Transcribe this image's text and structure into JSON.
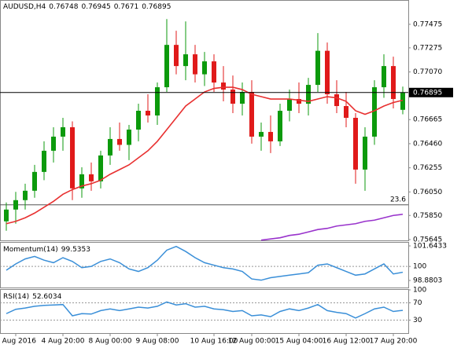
{
  "chart_data": [
    {
      "type": "candlestick",
      "title": "AUDUSD,H4",
      "color_up": "#0c9a0c",
      "color_down": "#e01a1a",
      "categories": [
        null,
        "3 Aug 2016",
        null,
        null,
        null,
        null,
        "4 Aug 20:00",
        null,
        null,
        null,
        null,
        "8 Aug 00:00",
        null,
        null,
        null,
        null,
        "9 Aug 08:00",
        null,
        null,
        null,
        null,
        null,
        "10 Aug 16:00",
        null,
        null,
        null,
        "12 Aug 00:00",
        null,
        null,
        null,
        null,
        "15 Aug 04:00",
        null,
        null,
        null,
        null,
        "16 Aug 12:00",
        null,
        null,
        null,
        null,
        "17 Aug 20:00",
        null
      ],
      "ohlc": [
        [
          0.758,
          0.7596,
          0.7572,
          0.759
        ],
        [
          0.759,
          0.7605,
          0.7578,
          0.7598
        ],
        [
          0.7598,
          0.7612,
          0.759,
          0.7606
        ],
        [
          0.7606,
          0.7628,
          0.76,
          0.7622
        ],
        [
          0.7622,
          0.7648,
          0.7615,
          0.764
        ],
        [
          0.764,
          0.766,
          0.763,
          0.7652
        ],
        [
          0.7652,
          0.7668,
          0.764,
          0.766
        ],
        [
          0.766,
          0.7665,
          0.7598,
          0.7608
        ],
        [
          0.7608,
          0.7626,
          0.76,
          0.762
        ],
        [
          0.762,
          0.763,
          0.7606,
          0.7614
        ],
        [
          0.7614,
          0.764,
          0.7608,
          0.7636
        ],
        [
          0.7636,
          0.766,
          0.7628,
          0.765
        ],
        [
          0.765,
          0.7664,
          0.764,
          0.7645
        ],
        [
          0.7645,
          0.7662,
          0.7632,
          0.7658
        ],
        [
          0.7658,
          0.768,
          0.7648,
          0.7674
        ],
        [
          0.7674,
          0.7688,
          0.7664,
          0.767
        ],
        [
          0.767,
          0.7698,
          0.7662,
          0.7694
        ],
        [
          0.7694,
          0.7752,
          0.769,
          0.773
        ],
        [
          0.773,
          0.7742,
          0.7705,
          0.7712
        ],
        [
          0.7712,
          0.775,
          0.77,
          0.7722
        ],
        [
          0.7722,
          0.773,
          0.7698,
          0.7705
        ],
        [
          0.7705,
          0.7724,
          0.7695,
          0.7716
        ],
        [
          0.7716,
          0.7722,
          0.769,
          0.7698
        ],
        [
          0.7698,
          0.7712,
          0.7682,
          0.7692
        ],
        [
          0.7692,
          0.7704,
          0.7672,
          0.768
        ],
        [
          0.768,
          0.7698,
          0.767,
          0.769
        ],
        [
          0.769,
          0.77,
          0.7646,
          0.7652
        ],
        [
          0.7652,
          0.7664,
          0.764,
          0.7656
        ],
        [
          0.7656,
          0.767,
          0.7638,
          0.7648
        ],
        [
          0.7648,
          0.768,
          0.7644,
          0.7674
        ],
        [
          0.7674,
          0.7692,
          0.7665,
          0.7684
        ],
        [
          0.7684,
          0.7698,
          0.7672,
          0.768
        ],
        [
          0.768,
          0.7702,
          0.767,
          0.7696
        ],
        [
          0.7696,
          0.774,
          0.769,
          0.7725
        ],
        [
          0.7725,
          0.7732,
          0.768,
          0.7688
        ],
        [
          0.7688,
          0.77,
          0.7672,
          0.7678
        ],
        [
          0.7678,
          0.769,
          0.766,
          0.7668
        ],
        [
          0.7668,
          0.7672,
          0.7612,
          0.7624
        ],
        [
          0.7624,
          0.766,
          0.7606,
          0.7652
        ],
        [
          0.7652,
          0.77,
          0.7645,
          0.7694
        ],
        [
          0.7694,
          0.7722,
          0.7685,
          0.7712
        ],
        [
          0.7712,
          0.772,
          0.7676,
          0.7684
        ],
        [
          0.76748,
          0.76945,
          0.7671,
          0.76895
        ]
      ],
      "series": [
        {
          "color": "#e83030",
          "values": [
            0.7578,
            0.758,
            0.7583,
            0.7587,
            0.7592,
            0.7597,
            0.7603,
            0.7607,
            0.761,
            0.7612,
            0.7615,
            0.762,
            0.7624,
            0.7628,
            0.7634,
            0.764,
            0.7648,
            0.7658,
            0.7668,
            0.7678,
            0.7684,
            0.769,
            0.7693,
            0.7694,
            0.7694,
            0.7692,
            0.7688,
            0.7686,
            0.7684,
            0.7684,
            0.7684,
            0.7683,
            0.7682,
            0.7684,
            0.7686,
            0.7685,
            0.7682,
            0.7674,
            0.7671,
            0.7674,
            0.7678,
            0.7681,
            0.7683
          ]
        },
        {
          "color": "#9933cc",
          "values": [
            null,
            null,
            null,
            null,
            null,
            null,
            null,
            null,
            null,
            null,
            null,
            null,
            null,
            null,
            null,
            null,
            null,
            null,
            null,
            null,
            null,
            null,
            null,
            null,
            null,
            null,
            null,
            0.7564,
            0.7565,
            0.7566,
            0.7568,
            0.7569,
            0.7571,
            0.7573,
            0.7574,
            0.7576,
            0.7577,
            0.7578,
            0.758,
            0.7581,
            0.7583,
            0.7585,
            0.7586
          ]
        }
      ],
      "current_price": 0.76895,
      "fib_level": {
        "value": 0.7594,
        "label": "23.6"
      },
      "ylim": [
        0.75638,
        0.77675
      ],
      "yticks": [
        0.77475,
        0.77275,
        {
          "value": 0.7707,
          "label": "0.77070"
        },
        0.76665,
        {
          "value": 0.7646,
          "label": "0.76460"
        },
        0.76255,
        {
          "value": 0.7605,
          "label": "0.76050"
        },
        {
          "value": 0.7585,
          "label": "0.75850"
        },
        0.75645
      ]
    },
    {
      "type": "line",
      "title": "Momentum(14)",
      "color": "#3a8fd8",
      "values": [
        99.7,
        100.2,
        100.6,
        100.8,
        100.5,
        100.3,
        100.7,
        100.4,
        99.9,
        100.0,
        100.4,
        100.6,
        100.3,
        99.8,
        99.6,
        99.9,
        100.5,
        101.3,
        101.6,
        101.2,
        100.7,
        100.3,
        100.1,
        99.9,
        99.8,
        99.6,
        99.0,
        98.9,
        99.1,
        99.2,
        99.3,
        99.4,
        99.5,
        100.1,
        100.2,
        99.9,
        99.6,
        99.3,
        99.4,
        99.8,
        100.2,
        99.4,
        99.5353
      ],
      "ylim": [
        98.314,
        101.895
      ],
      "yticks": [
        101.6433,
        100,
        98.8803
      ],
      "level": 100
    },
    {
      "type": "line",
      "title": "RSI(14)",
      "color": "#3a8fd8",
      "values": [
        45,
        55,
        58,
        62,
        64,
        65,
        66,
        40,
        45,
        44,
        52,
        56,
        52,
        56,
        60,
        58,
        62,
        72,
        65,
        68,
        60,
        62,
        56,
        54,
        50,
        52,
        40,
        42,
        38,
        50,
        56,
        52,
        58,
        66,
        52,
        48,
        45,
        35,
        45,
        56,
        60,
        50,
        52.6034
      ],
      "ylim": [
        0,
        100
      ],
      "yticks": [
        100,
        70,
        30
      ],
      "levels": [
        70,
        30
      ]
    }
  ]
}
